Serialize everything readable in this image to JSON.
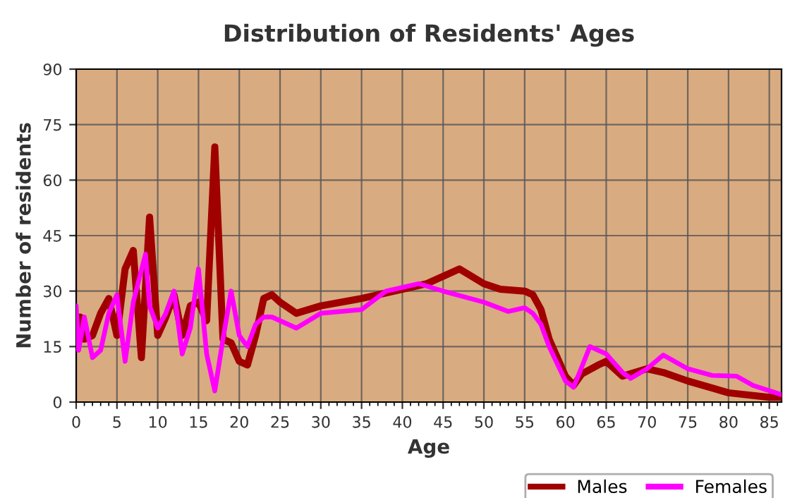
{
  "chart_data": {
    "type": "line",
    "title": "Distribution of Residents' Ages",
    "xlabel": "Age",
    "ylabel": "Number of residents",
    "xlim": [
      0,
      86.5
    ],
    "xticks": [
      0,
      5,
      10,
      15,
      20,
      25,
      30,
      35,
      40,
      45,
      50,
      55,
      60,
      65,
      70,
      75,
      80,
      85
    ],
    "ylim": [
      0,
      90
    ],
    "yticks": [
      0,
      15,
      30,
      45,
      60,
      75,
      90
    ],
    "grid": true,
    "legend": "bottom right",
    "marker": "none",
    "line_style": "solid",
    "series": [
      {
        "name": "Males",
        "color": "#a00000",
        "x": [
          0,
          0.5,
          1,
          2,
          3,
          4,
          5,
          6,
          7,
          8,
          9,
          10,
          11,
          12,
          13,
          14,
          15,
          16,
          17,
          18,
          19,
          20,
          21,
          22,
          23,
          24,
          25,
          27,
          30,
          35,
          40,
          43,
          47,
          50,
          52,
          55,
          56,
          57,
          58,
          60,
          61,
          62,
          64,
          65,
          67,
          70,
          72,
          75,
          80,
          85,
          86.5
        ],
        "values": [
          22,
          23,
          17,
          18,
          24,
          28,
          18,
          36,
          41,
          12,
          50,
          18,
          23,
          29,
          18,
          26,
          27,
          22,
          69,
          17,
          16,
          11,
          10,
          18,
          28,
          29,
          27,
          24,
          26,
          28,
          30.5,
          32,
          36,
          32,
          30.5,
          30,
          29,
          25,
          17,
          7,
          4.5,
          7.6,
          10,
          11,
          7,
          9,
          8,
          5.7,
          2.5,
          1.3,
          1.3
        ]
      },
      {
        "name": "Females",
        "color": "#ff00ff",
        "x": [
          0,
          0.3,
          1,
          2,
          3,
          4,
          5,
          6,
          7,
          8.5,
          9,
          10,
          11,
          12,
          13,
          14,
          15,
          16,
          17,
          18,
          19,
          20,
          21,
          22,
          23,
          24,
          25,
          27,
          30,
          35,
          38,
          42,
          45,
          50,
          53,
          55,
          56,
          57,
          58,
          60,
          61,
          62,
          63,
          65,
          67,
          68,
          70,
          72,
          75,
          78,
          81,
          83,
          86.5
        ],
        "values": [
          26,
          14,
          23,
          12,
          14,
          24,
          29,
          11,
          27,
          40,
          26,
          20,
          24,
          30,
          13,
          20,
          36,
          13,
          3,
          17,
          30,
          18,
          15,
          21,
          23,
          23,
          22,
          20,
          24,
          25,
          30,
          32,
          30,
          27,
          24.5,
          25.5,
          24,
          21,
          15,
          5.7,
          4,
          9.5,
          15,
          13,
          8,
          6.4,
          9,
          12.7,
          9,
          7.2,
          7,
          4.5,
          2
        ]
      }
    ]
  }
}
